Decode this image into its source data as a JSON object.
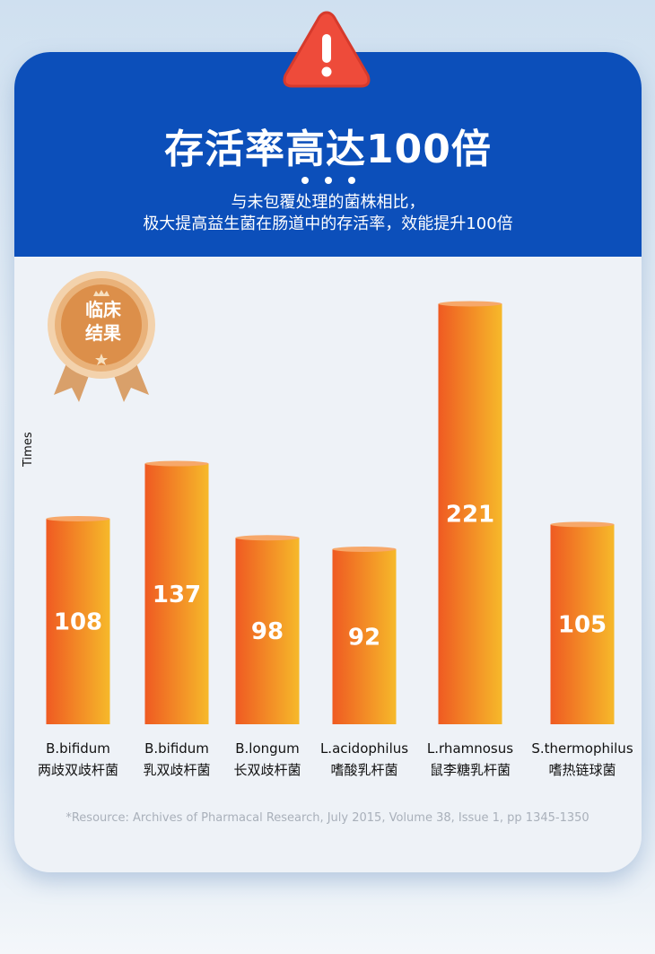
{
  "header": {
    "title": "存活率高达100倍",
    "subtitle_line1": "与未包覆处理的菌株相比，",
    "subtitle_line2": "极大提高益生菌在肠道中的存活率，效能提升100倍"
  },
  "badge": {
    "line1": "临床",
    "line2": "结果"
  },
  "colors": {
    "header_blue": "#0c4fba",
    "bar_start": "#ef5a22",
    "bar_end": "#f6b92a",
    "warning_red": "#ee4b3a"
  },
  "chart_data": {
    "type": "bar",
    "ylabel": "Times",
    "categories": [
      {
        "en": "B.bifidum",
        "zh": "两歧双歧杆菌"
      },
      {
        "en": "B.bifidum",
        "zh": "乳双歧杆菌"
      },
      {
        "en": "B.longum",
        "zh": "长双歧杆菌"
      },
      {
        "en": "L.acidophilus",
        "zh": "嗜酸乳杆菌"
      },
      {
        "en": "L.rhamnosus",
        "zh": "鼠李糖乳杆菌"
      },
      {
        "en": "S.thermophilus",
        "zh": "嗜热链球菌"
      }
    ],
    "values": [
      108,
      137,
      98,
      92,
      221,
      105
    ],
    "labels": [
      "108",
      "137",
      "98",
      "92",
      "221",
      "105"
    ],
    "grid": false
  },
  "footnote": "*Resource: Archives of Pharmacal Research, July 2015, Volume 38, Issue 1, pp  1345-1350"
}
